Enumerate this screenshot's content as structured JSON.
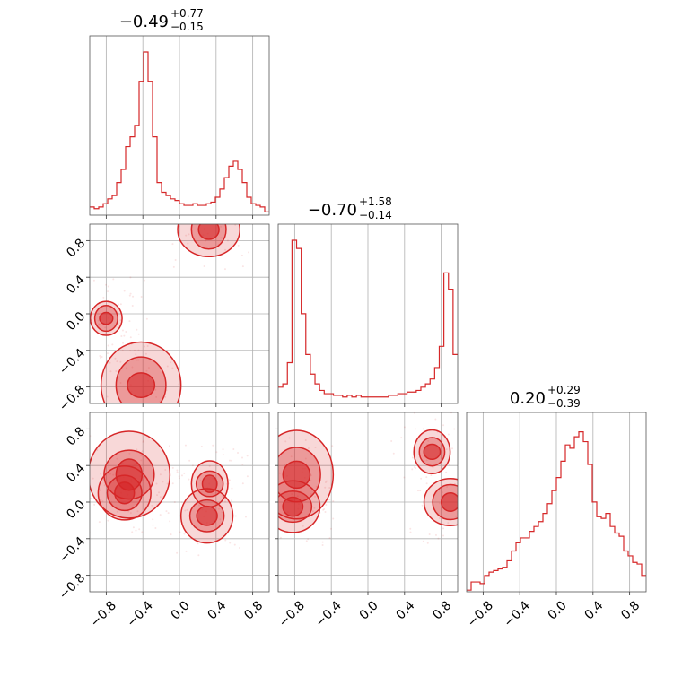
{
  "chart_data": {
    "type": "corner",
    "color": "#d62728",
    "axis_range": [
      -0.98,
      0.98
    ],
    "grid": true,
    "ticks": [
      -0.8,
      -0.4,
      0.0,
      0.4,
      0.8
    ],
    "tick_labels": [
      "−0.8",
      "−0.4",
      "0.0",
      "0.4",
      "0.8"
    ],
    "diagonal": [
      {
        "param_index": 0,
        "title": {
          "median": "−0.49",
          "plus": "+0.77",
          "minus": "−0.15"
        },
        "histogram": [
          0.05,
          0.04,
          0.05,
          0.07,
          0.1,
          0.12,
          0.2,
          0.28,
          0.42,
          0.48,
          0.55,
          0.82,
          1.0,
          0.82,
          0.48,
          0.2,
          0.14,
          0.12,
          0.1,
          0.09,
          0.07,
          0.06,
          0.06,
          0.07,
          0.06,
          0.06,
          0.07,
          0.08,
          0.11,
          0.16,
          0.23,
          0.3,
          0.33,
          0.28,
          0.2,
          0.11,
          0.07,
          0.06,
          0.05,
          0.02
        ]
      },
      {
        "param_index": 1,
        "title": {
          "median": "−0.70",
          "plus": "+1.58",
          "minus": "−0.14"
        },
        "histogram": [
          0.1,
          0.12,
          0.25,
          1.0,
          0.95,
          0.55,
          0.3,
          0.18,
          0.12,
          0.08,
          0.06,
          0.06,
          0.05,
          0.05,
          0.04,
          0.05,
          0.04,
          0.05,
          0.04,
          0.04,
          0.04,
          0.04,
          0.04,
          0.04,
          0.05,
          0.05,
          0.06,
          0.06,
          0.07,
          0.07,
          0.08,
          0.1,
          0.12,
          0.15,
          0.22,
          0.35,
          0.8,
          0.7,
          0.3
        ]
      },
      {
        "param_index": 2,
        "title": {
          "median": "0.20",
          "plus": "+0.29",
          "minus": "−0.39"
        },
        "histogram": [
          0.01,
          0.06,
          0.06,
          0.05,
          0.1,
          0.12,
          0.13,
          0.14,
          0.15,
          0.19,
          0.25,
          0.3,
          0.33,
          0.33,
          0.37,
          0.4,
          0.43,
          0.48,
          0.54,
          0.62,
          0.7,
          0.8,
          0.9,
          0.88,
          0.95,
          0.98,
          0.92,
          0.78,
          0.55,
          0.46,
          0.45,
          0.48,
          0.4,
          0.36,
          0.34,
          0.25,
          0.22,
          0.18,
          0.17,
          0.1
        ]
      }
    ],
    "pairs": [
      {
        "x_param": 0,
        "y_param": 1,
        "modes": [
          {
            "x": -0.42,
            "y": -0.78,
            "weight": 1.0
          },
          {
            "x": 0.32,
            "y": 0.92,
            "weight": 0.7
          },
          {
            "x": -0.8,
            "y": -0.05,
            "weight": 0.3
          }
        ]
      },
      {
        "x_param": 0,
        "y_param": 2,
        "modes": [
          {
            "x": -0.55,
            "y": 0.3,
            "weight": 1.0
          },
          {
            "x": -0.6,
            "y": 0.1,
            "weight": 0.6
          },
          {
            "x": 0.3,
            "y": -0.15,
            "weight": 0.6
          },
          {
            "x": 0.33,
            "y": 0.2,
            "weight": 0.4
          }
        ]
      },
      {
        "x_param": 1,
        "y_param": 2,
        "modes": [
          {
            "x": -0.78,
            "y": 0.3,
            "weight": 1.0
          },
          {
            "x": -0.82,
            "y": -0.05,
            "weight": 0.6
          },
          {
            "x": 0.9,
            "y": 0.0,
            "weight": 0.6
          },
          {
            "x": 0.7,
            "y": 0.55,
            "weight": 0.4
          }
        ]
      }
    ]
  }
}
